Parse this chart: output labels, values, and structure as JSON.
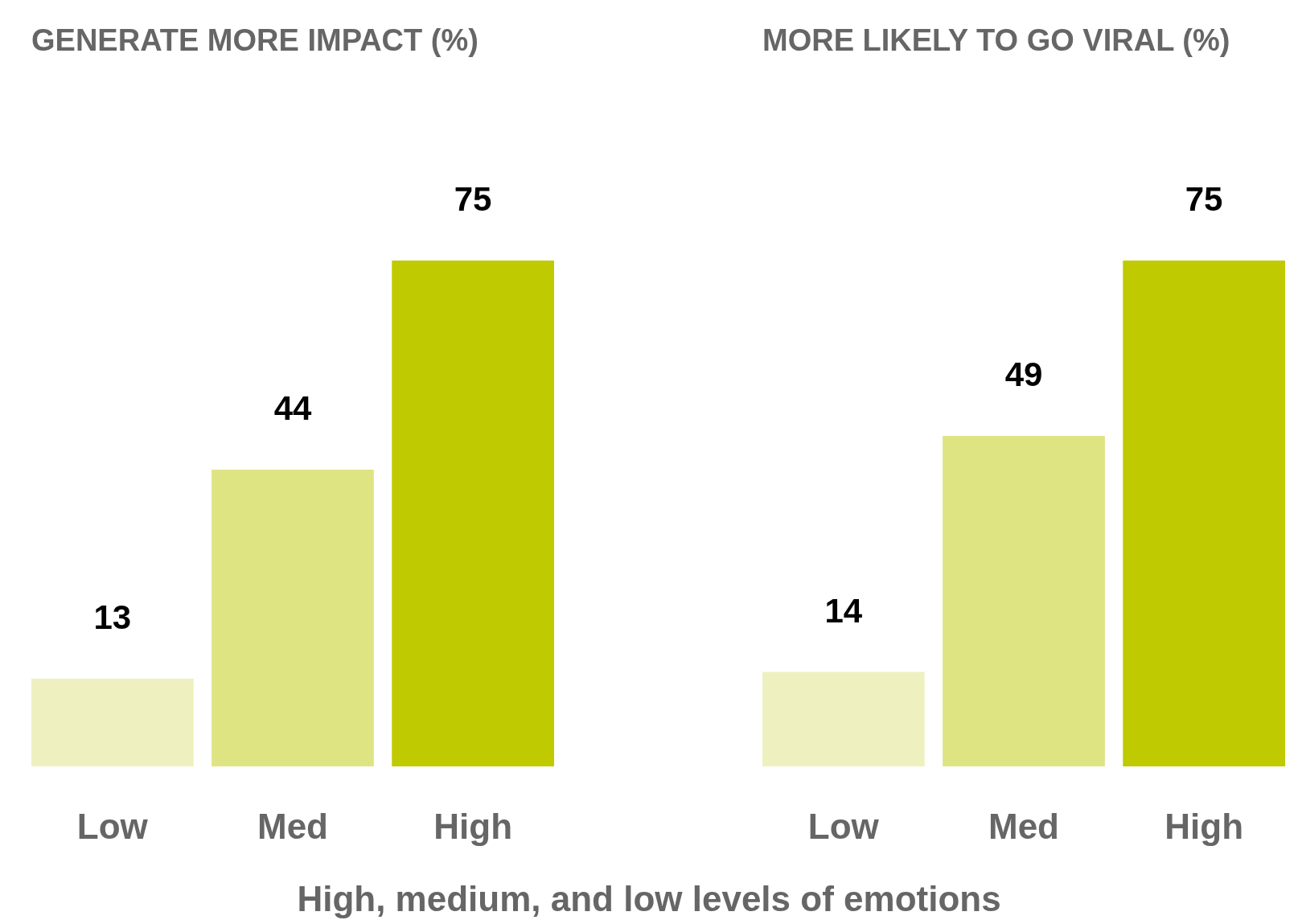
{
  "chart_data": [
    {
      "type": "bar",
      "title": "GENERATE MORE IMPACT (%)",
      "categories": [
        "Low",
        "Med",
        "High"
      ],
      "values": [
        13,
        44,
        75
      ],
      "colors": [
        "#eef1bf",
        "#dfe483",
        "#bfcb00"
      ],
      "data_labels": true,
      "xlabel": "High, medium, and low levels of emotions"
    },
    {
      "type": "bar",
      "title": "MORE LIKELY TO GO VIRAL (%)",
      "categories": [
        "Low",
        "Med",
        "High"
      ],
      "values": [
        14,
        49,
        75
      ],
      "colors": [
        "#eef1bf",
        "#dfe483",
        "#bfcb00"
      ],
      "data_labels": true
    }
  ]
}
